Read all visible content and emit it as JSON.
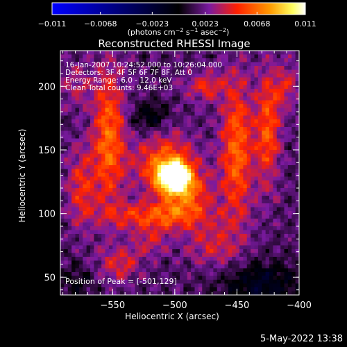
{
  "chart_data": {
    "type": "heatmap",
    "title": "Reconstructed RHESSI Image",
    "xlabel": "Heliocentric X (arcsec)",
    "ylabel": "Heliocentric Y (arcsec)",
    "xlim": [
      -592,
      -400
    ],
    "ylim": [
      36,
      228
    ],
    "xticks": [
      -550,
      -500,
      -450,
      -400
    ],
    "xtick_labels": [
      "−550",
      "−500",
      "−450",
      "−400"
    ],
    "yticks": [
      50,
      100,
      150,
      200
    ],
    "ytick_labels": [
      "50",
      "100",
      "150",
      "200"
    ],
    "colorbar": {
      "label_main": "(photons cm",
      "label_sup1": "−2",
      "label_mid1": " s",
      "label_sup2": "−1",
      "label_mid2": " asec",
      "label_sup3": "−2",
      "label_end": ")",
      "range": [
        -0.011,
        0.011
      ],
      "ticks": [
        -0.011,
        -0.0068,
        -0.0023,
        0.0023,
        0.0068,
        0.011
      ],
      "tick_labels": [
        "−0.011",
        "−0.0068",
        "−0.0023",
        "0.0023",
        "0.0068",
        "0.011"
      ],
      "colormap": [
        "#0000ff",
        "#000000",
        "#7a1aa0",
        "#ff2000",
        "#ff9a00",
        "#ffff60",
        "#ffffff"
      ]
    },
    "annotations": [
      "16-Jan-2007 10:24:52.000 to 10:26:04.000",
      "Detectors: 3F 4F 5F 6F 7F 8F, Att 0",
      "Energy Range: 6.0 - 12.0 keV",
      "Clean     Total counts: 9.46E+03"
    ],
    "peak_label": "Position of Peak = [-501,129]",
    "peak": [
      -501,
      129
    ],
    "sources": [
      {
        "x": -501,
        "y": 129,
        "sx": 9,
        "sy": 8,
        "amp": 0.011
      },
      {
        "x": -508,
        "y": 140,
        "sx": 18,
        "sy": 16,
        "amp": 0.0045
      },
      {
        "x": -490,
        "y": 115,
        "sx": 14,
        "sy": 12,
        "amp": 0.004
      },
      {
        "x": -553,
        "y": 160,
        "sx": 9,
        "sy": 38,
        "amp": 0.005
      },
      {
        "x": -450,
        "y": 150,
        "sx": 9,
        "sy": 40,
        "amp": 0.0048
      },
      {
        "x": -425,
        "y": 165,
        "sx": 7,
        "sy": 32,
        "amp": 0.0042
      },
      {
        "x": -575,
        "y": 120,
        "sx": 8,
        "sy": 22,
        "amp": 0.0032
      },
      {
        "x": -513,
        "y": 98,
        "sx": 28,
        "sy": 8,
        "amp": 0.0042
      },
      {
        "x": -475,
        "y": 200,
        "sx": 12,
        "sy": 8,
        "amp": 0.003
      },
      {
        "x": -545,
        "y": 60,
        "sx": 12,
        "sy": 10,
        "amp": 0.0028
      },
      {
        "x": -470,
        "y": 75,
        "sx": 16,
        "sy": 12,
        "amp": 0.0025
      },
      {
        "x": -520,
        "y": 78,
        "sx": 10,
        "sy": 8,
        "amp": 0.0022
      },
      {
        "x": -580,
        "y": 200,
        "sx": 10,
        "sy": 12,
        "amp": 0.002
      },
      {
        "x": -410,
        "y": 200,
        "sx": 8,
        "sy": 14,
        "amp": 0.0024
      },
      {
        "x": -520,
        "y": 175,
        "sx": 10,
        "sy": 8,
        "amp": -0.0025
      },
      {
        "x": -430,
        "y": 45,
        "sx": 22,
        "sy": 12,
        "amp": -0.003
      },
      {
        "x": -580,
        "y": 45,
        "sx": 12,
        "sy": 10,
        "amp": -0.0015
      }
    ]
  },
  "footer_timestamp": "5-May-2022 13:38"
}
